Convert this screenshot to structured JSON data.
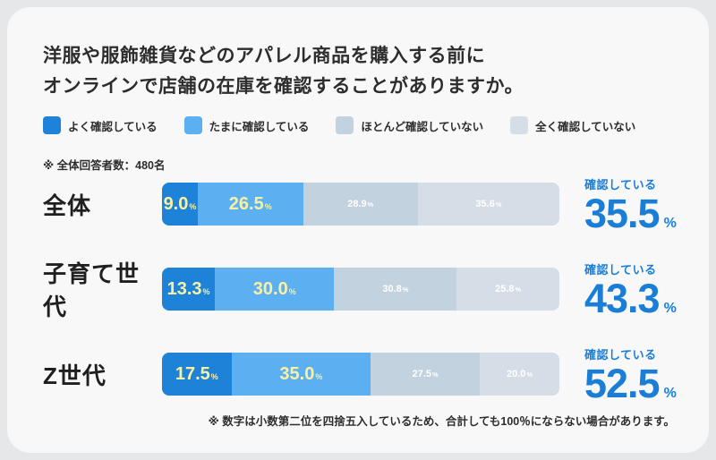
{
  "title": {
    "line1": "洋服や服飾雑貨などのアパレル商品を購入する前に",
    "line2": "オンラインで店舗の在庫を確認することがありますか。"
  },
  "respondents_note": "※ 全体回答者数：480名",
  "footnote": "※ 数字は小数第二位を四捨五入しているため、合計しても100％にならない場合があります。",
  "colors": {
    "segment_often": "#1f82d9",
    "segment_sometimes": "#5cb0f2",
    "segment_rarely": "#c3d2df",
    "segment_never": "#d5dee7",
    "accent_blue": "#1b7ed6",
    "value_yellow": "#f9f1a2",
    "value_white": "#ffffff",
    "card_bg": "#f8f8f8",
    "page_bg": "#e6e7e8"
  },
  "chart_data": {
    "type": "bar",
    "subtype": "horizontal-stacked",
    "title": "洋服や服飾雑貨などのアパレル商品を購入する前にオンラインで店舗の在庫を確認することがありますか。",
    "categories": [
      "全体",
      "子育て世代",
      "Z世代"
    ],
    "series": [
      {
        "name": "よく確認している",
        "color": "#1f82d9",
        "values": [
          9.0,
          13.3,
          17.5
        ]
      },
      {
        "name": "たまに確認している",
        "color": "#5cb0f2",
        "values": [
          26.5,
          30.0,
          35.0
        ]
      },
      {
        "name": "ほとんど確認していない",
        "color": "#c3d2df",
        "values": [
          28.9,
          30.8,
          27.5
        ]
      },
      {
        "name": "全く確認していない",
        "color": "#d5dee7",
        "values": [
          35.6,
          25.8,
          20.0
        ]
      }
    ],
    "unit": "%",
    "xlim": [
      0,
      100
    ],
    "legend_position": "top",
    "grid": false,
    "annotations": {
      "label": "確認している",
      "values": [
        35.5,
        43.3,
        52.5
      ]
    }
  }
}
